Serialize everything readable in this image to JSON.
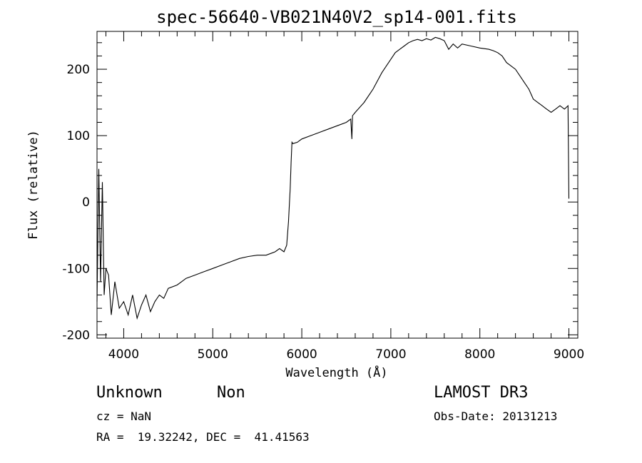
{
  "chart_data": {
    "type": "line",
    "title": "spec-56640-VB021N40V2_sp14-001.fits",
    "xlabel": "Wavelength (Å)",
    "ylabel": "Flux (relative)",
    "xlim": [
      3700,
      9100
    ],
    "ylim": [
      -205,
      257
    ],
    "x_ticks": [
      4000,
      5000,
      6000,
      7000,
      8000,
      9000
    ],
    "y_ticks": [
      -200,
      -100,
      0,
      100,
      200
    ],
    "grid": false,
    "series": [
      {
        "x": [
          3700,
          3720,
          3740,
          3760,
          3780,
          3800,
          3830,
          3860,
          3900,
          3950,
          4000,
          4050,
          4100,
          4150,
          4200,
          4250,
          4300,
          4350,
          4400,
          4450,
          4500,
          4600,
          4700,
          4800,
          4900,
          5000,
          5100,
          5200,
          5300,
          5400,
          5500,
          5600,
          5700,
          5750,
          5800,
          5830,
          5850,
          5870,
          5880,
          5890,
          5900,
          5950,
          6000,
          6100,
          6200,
          6300,
          6400,
          6500,
          6550,
          6563,
          6570,
          6600,
          6700,
          6800,
          6900,
          7000,
          7050,
          7100,
          7150,
          7200,
          7250,
          7300,
          7350,
          7400,
          7450,
          7500,
          7550,
          7600,
          7650,
          7700,
          7750,
          7800,
          7900,
          8000,
          8100,
          8150,
          8200,
          8250,
          8300,
          8350,
          8400,
          8450,
          8500,
          8550,
          8600,
          8650,
          8700,
          8750,
          8800,
          8850,
          8900,
          8950,
          8990,
          9000
        ],
        "values": [
          -150,
          50,
          -120,
          30,
          -140,
          -100,
          -110,
          -170,
          -120,
          -160,
          -150,
          -170,
          -140,
          -175,
          -155,
          -140,
          -165,
          -150,
          -140,
          -145,
          -130,
          -125,
          -115,
          -110,
          -105,
          -100,
          -95,
          -90,
          -85,
          -82,
          -80,
          -80,
          -75,
          -70,
          -75,
          -65,
          -30,
          20,
          60,
          90,
          88,
          90,
          95,
          100,
          105,
          110,
          115,
          120,
          125,
          95,
          130,
          135,
          150,
          170,
          195,
          215,
          225,
          230,
          235,
          240,
          243,
          245,
          243,
          246,
          244,
          248,
          246,
          243,
          230,
          238,
          232,
          238,
          235,
          232,
          230,
          228,
          225,
          220,
          210,
          205,
          200,
          190,
          180,
          170,
          155,
          150,
          145,
          140,
          135,
          140,
          145,
          140,
          145,
          5
        ]
      }
    ]
  },
  "info": {
    "object_class": "Unknown",
    "object_subclass": "Non",
    "cz": "cz = NaN",
    "radec": "RA =  19.32242, DEC =  41.41563",
    "survey": "LAMOST DR3",
    "obs_date": "Obs-Date: 20131213"
  }
}
